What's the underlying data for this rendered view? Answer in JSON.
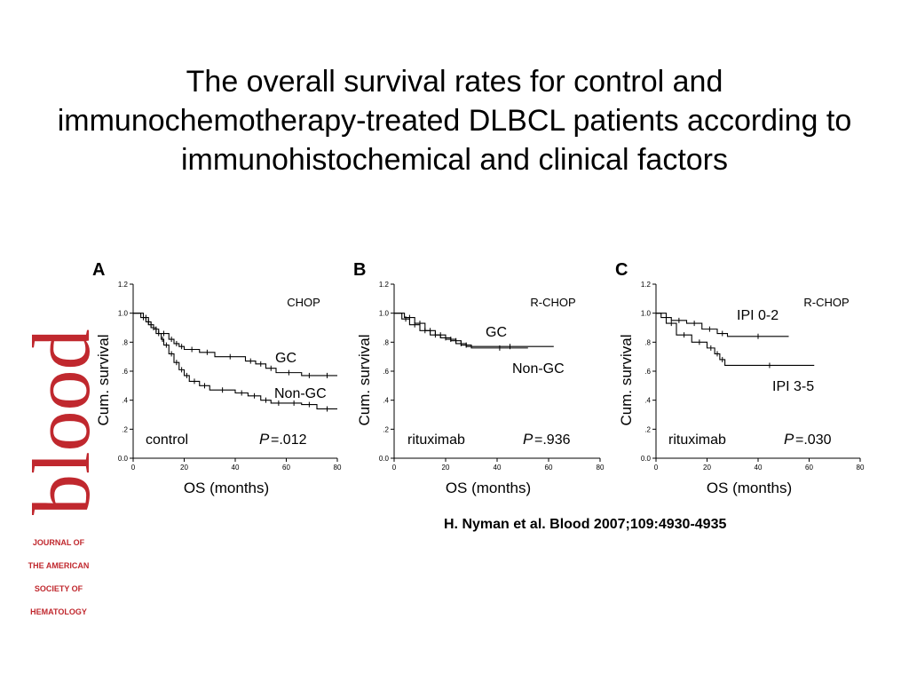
{
  "slide": {
    "title": "The overall survival rates for control and immunochemotherapy-treated DLBCL patients according to immunohistochemical and clinical factors",
    "citation": "H. Nyman et al. Blood 2007;109:4930-4935"
  },
  "logo": {
    "wordmark": "blood",
    "lines": [
      "JOURNAL OF",
      "THE AMERICAN",
      "SOCIETY OF",
      "HEMATOLOGY"
    ],
    "color": "#c0282e"
  },
  "chart_data": [
    {
      "type": "line",
      "panel": "A",
      "regimen": "CHOP",
      "group": "control",
      "p_value": "=.012",
      "xlabel": "OS (months)",
      "ylabel": "Cum. survival",
      "xlim": [
        0,
        80
      ],
      "ylim": [
        0.0,
        1.2
      ],
      "x_ticks": [
        0,
        20,
        40,
        60,
        80
      ],
      "y_ticks": [
        0.0,
        0.2,
        0.4,
        0.6,
        0.8,
        1.0,
        1.2
      ],
      "y_tick_labels": [
        "0.0",
        ".2",
        ".4",
        ".6",
        ".8",
        "1.0",
        "1.2"
      ],
      "series": [
        {
          "name": "GC",
          "x": [
            0,
            4,
            6,
            8,
            10,
            14,
            16,
            18,
            20,
            26,
            32,
            44,
            48,
            52,
            56,
            66,
            72,
            80
          ],
          "y": [
            1.0,
            0.97,
            0.92,
            0.89,
            0.86,
            0.82,
            0.79,
            0.77,
            0.75,
            0.73,
            0.7,
            0.67,
            0.65,
            0.62,
            0.59,
            0.57,
            0.57,
            0.57
          ]
        },
        {
          "name": "Non-GC",
          "x": [
            0,
            3,
            5,
            7,
            9,
            11,
            12,
            14,
            16,
            18,
            20,
            22,
            26,
            30,
            40,
            45,
            50,
            54,
            60,
            66,
            72,
            80
          ],
          "y": [
            1.0,
            0.97,
            0.94,
            0.9,
            0.86,
            0.82,
            0.78,
            0.72,
            0.66,
            0.61,
            0.57,
            0.53,
            0.5,
            0.47,
            0.45,
            0.43,
            0.4,
            0.38,
            0.38,
            0.37,
            0.34,
            0.34
          ]
        }
      ]
    },
    {
      "type": "line",
      "panel": "B",
      "regimen": "R-CHOP",
      "group": "rituximab",
      "p_value": "=.936",
      "xlabel": "OS (months)",
      "ylabel": "Cum. survival",
      "xlim": [
        0,
        80
      ],
      "ylim": [
        0.0,
        1.2
      ],
      "x_ticks": [
        0,
        20,
        40,
        60,
        80
      ],
      "y_ticks": [
        0.0,
        0.2,
        0.4,
        0.6,
        0.8,
        1.0,
        1.2
      ],
      "y_tick_labels": [
        "0.0",
        ".2",
        ".4",
        ".6",
        ".8",
        "1.0",
        "1.2"
      ],
      "series": [
        {
          "name": "GC",
          "x": [
            0,
            4,
            8,
            12,
            16,
            20,
            24,
            28,
            62
          ],
          "y": [
            1.0,
            0.97,
            0.93,
            0.88,
            0.85,
            0.82,
            0.79,
            0.77,
            0.77
          ]
        },
        {
          "name": "Non-GC",
          "x": [
            0,
            3,
            6,
            10,
            14,
            18,
            22,
            26,
            30,
            52
          ],
          "y": [
            1.0,
            0.96,
            0.92,
            0.88,
            0.85,
            0.83,
            0.81,
            0.78,
            0.76,
            0.76
          ]
        }
      ]
    },
    {
      "type": "line",
      "panel": "C",
      "regimen": "R-CHOP",
      "group": "rituximab",
      "p_value": "=.030",
      "xlabel": "OS (months)",
      "ylabel": "Cum. survival",
      "xlim": [
        0,
        80
      ],
      "ylim": [
        0.0,
        1.2
      ],
      "x_ticks": [
        0,
        20,
        40,
        60,
        80
      ],
      "y_ticks": [
        0.0,
        0.2,
        0.4,
        0.6,
        0.8,
        1.0,
        1.2
      ],
      "y_tick_labels": [
        "0.0",
        ".2",
        ".4",
        ".6",
        ".8",
        "1.0",
        "1.2"
      ],
      "series": [
        {
          "name": "IPI 0-2",
          "x": [
            0,
            2,
            6,
            12,
            18,
            24,
            28,
            52
          ],
          "y": [
            1.0,
            0.97,
            0.95,
            0.93,
            0.89,
            0.86,
            0.84,
            0.84
          ]
        },
        {
          "name": "IPI 3-5",
          "x": [
            0,
            4,
            8,
            14,
            20,
            23,
            25,
            27,
            62
          ],
          "y": [
            1.0,
            0.93,
            0.85,
            0.8,
            0.76,
            0.72,
            0.68,
            0.64,
            0.64
          ]
        }
      ]
    }
  ]
}
